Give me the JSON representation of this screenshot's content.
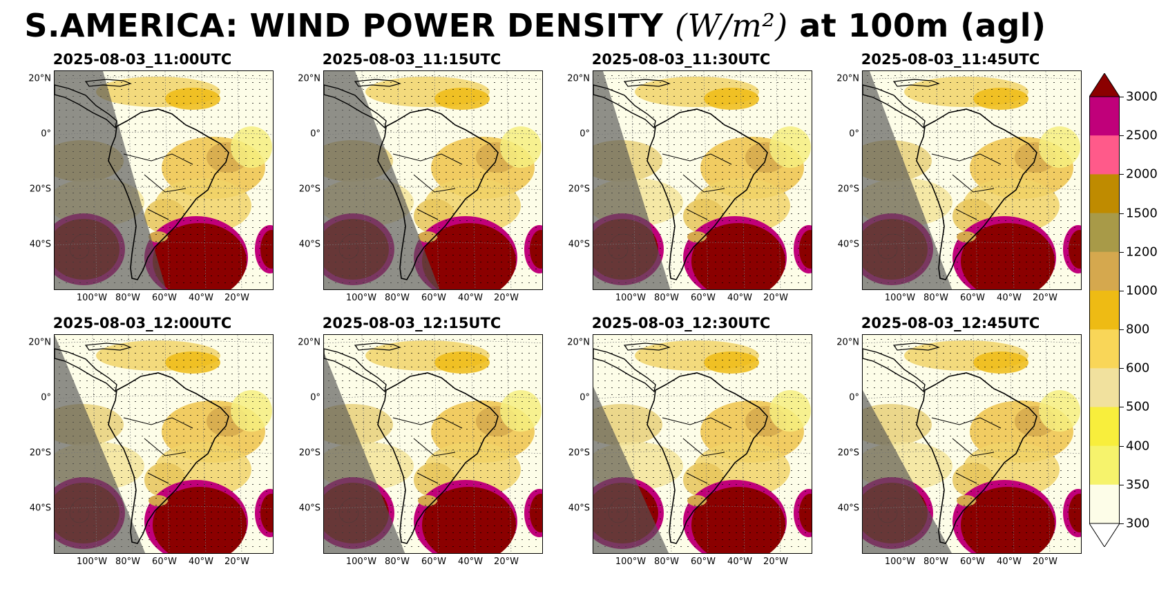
{
  "title": {
    "main": "S.AMERICA: WIND POWER DENSITY",
    "unit": "(W/m²)",
    "suffix": "at 100m (agl)"
  },
  "panels": [
    {
      "time": "2025-08-03_11:00UTC"
    },
    {
      "time": "2025-08-03_11:15UTC"
    },
    {
      "time": "2025-08-03_11:30UTC"
    },
    {
      "time": "2025-08-03_11:45UTC"
    },
    {
      "time": "2025-08-03_12:00UTC"
    },
    {
      "time": "2025-08-03_12:15UTC"
    },
    {
      "time": "2025-08-03_12:30UTC"
    },
    {
      "time": "2025-08-03_12:45UTC"
    }
  ],
  "lat_labels": [
    "20°N",
    "0°",
    "20°S",
    "40°S"
  ],
  "lon_labels": [
    "100°W",
    "80°W",
    "60°W",
    "40°W",
    "20°W"
  ],
  "colorbar": {
    "ticks": [
      "3000",
      "2500",
      "2000",
      "1500",
      "1200",
      "1000",
      "800",
      "600",
      "500",
      "400",
      "350",
      "300"
    ],
    "colors": [
      "#c0007a",
      "#ff5a8a",
      "#bf8b00",
      "#a89a48",
      "#d5a84e",
      "#eebb14",
      "#f9d658",
      "#f1e19e",
      "#f8ee3c",
      "#f6f36c",
      "#fdfde8"
    ],
    "over_color": "#8b0000",
    "under_color": "#ffffff"
  }
}
